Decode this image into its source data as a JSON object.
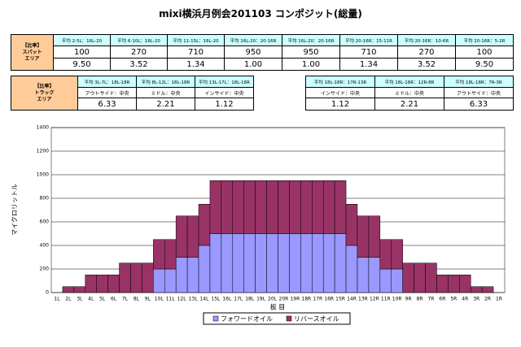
{
  "title": "mixi横浜月例会201103 コンポジット(総量)",
  "spot_table": {
    "label": [
      "【比率】",
      "スパット",
      "エリア"
    ],
    "columns": [
      "平均 2-5L：16L-20",
      "平均 6-10L：16L-20",
      "平均 11-15L：16L-20",
      "平均 16L-20：20-16R",
      "平均 16L-20：20-16R",
      "平均 20-16R：15-11R",
      "平均 20-16R：10-6R",
      "平均 20-16R：5-2R"
    ],
    "rows": [
      [
        "100",
        "270",
        "710",
        "950",
        "950",
        "710",
        "270",
        "100"
      ],
      [
        "9.50",
        "3.52",
        "1.34",
        "1.00",
        "1.00",
        "1.34",
        "3.52",
        "9.50"
      ]
    ]
  },
  "track_table": {
    "label": [
      "【比率】",
      "トラック",
      "エリア"
    ],
    "columns": [
      "平均 3L-7L：18L-18R",
      "平均 8L-12L：18L-18R",
      "平均 13L-17L：18L-18R",
      null,
      "平均 18L-18R：17R-13R",
      "平均 18L-18R：12R-8R",
      "平均 18L-18R：7R-3R"
    ],
    "rows": [
      [
        "アウトサイド：中央",
        "ミドル：中央",
        "インサイド：中央",
        null,
        "インサイド：中央",
        "ミドル：中央",
        "アウトサイド：中央"
      ],
      [
        "6.33",
        "2.21",
        "1.12",
        null,
        "1.12",
        "2.21",
        "6.33"
      ]
    ]
  },
  "chart_data": {
    "type": "stacked_bar",
    "x_label": "板 目",
    "y_label": "マイクロリットル",
    "categories": [
      "1L",
      "2L",
      "3L",
      "4L",
      "5L",
      "6L",
      "7L",
      "8L",
      "9L",
      "10L",
      "11L",
      "12L",
      "13L",
      "14L",
      "15L",
      "16L",
      "17L",
      "18L",
      "19L",
      "20L",
      "20R",
      "19R",
      "18R",
      "17R",
      "16R",
      "15R",
      "14R",
      "13R",
      "12R",
      "11R",
      "10R",
      "9R",
      "8R",
      "7R",
      "6R",
      "5R",
      "4R",
      "3R",
      "2R",
      "1R"
    ],
    "series": [
      {
        "name": "フォワードオイル",
        "color": "#9999ff",
        "values": [
          0,
          0,
          0,
          0,
          0,
          0,
          0,
          0,
          0,
          200,
          200,
          300,
          300,
          400,
          500,
          500,
          500,
          500,
          500,
          500,
          500,
          500,
          500,
          500,
          500,
          500,
          400,
          300,
          300,
          200,
          200,
          0,
          0,
          0,
          0,
          0,
          0,
          0,
          0,
          0
        ]
      },
      {
        "name": "リバースオイル",
        "color": "#993366",
        "values": [
          0,
          50,
          50,
          150,
          150,
          150,
          250,
          250,
          250,
          250,
          250,
          350,
          350,
          350,
          450,
          450,
          450,
          450,
          450,
          450,
          450,
          450,
          450,
          450,
          450,
          450,
          350,
          350,
          350,
          250,
          250,
          250,
          250,
          250,
          150,
          150,
          150,
          50,
          50,
          0
        ]
      }
    ],
    "ylim": [
      0,
      1400
    ],
    "yticks": [
      0,
      200,
      400,
      600,
      800,
      1000,
      1200,
      1400
    ],
    "grid": true,
    "legend": "bottom"
  }
}
